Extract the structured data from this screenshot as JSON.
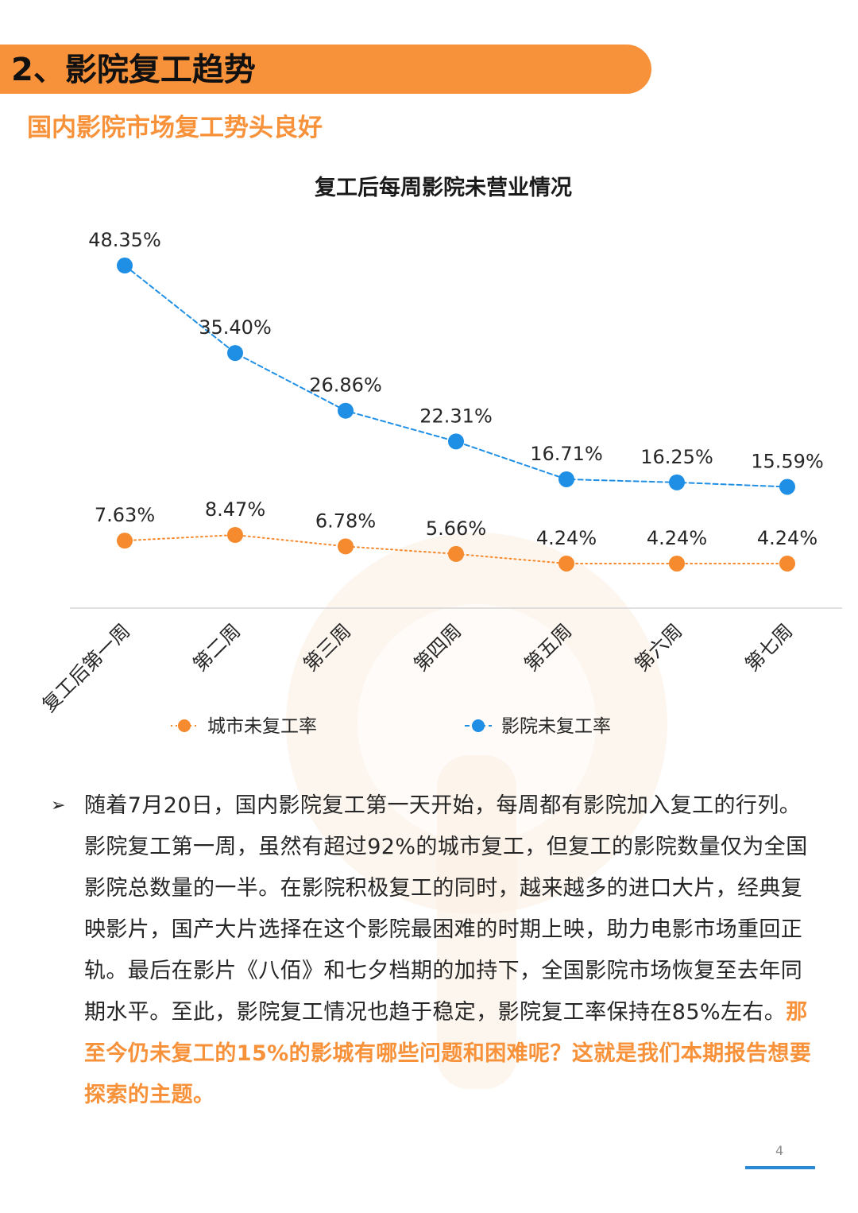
{
  "header": {
    "section_title": "2、影院复工趋势",
    "subtitle": "国内影院市场复工势头良好"
  },
  "colors": {
    "accent_orange": "#f7923a",
    "series_orange": "#f58a2e",
    "series_blue": "#1f8fe5",
    "page_line": "#2a8ad8"
  },
  "chart_data": {
    "type": "line",
    "title": "复工后每周影院未营业情况",
    "categories": [
      "复工后第一周",
      "第二周",
      "第三周",
      "第四周",
      "第五周",
      "第六周",
      "第七周"
    ],
    "series": [
      {
        "name": "城市未复工率",
        "color": "#f58a2e",
        "style": "dotted",
        "values": [
          7.63,
          8.47,
          6.78,
          5.66,
          4.24,
          4.24,
          4.24
        ],
        "labels": [
          "7.63%",
          "8.47%",
          "6.78%",
          "5.66%",
          "4.24%",
          "4.24%",
          "4.24%"
        ]
      },
      {
        "name": "影院未复工率",
        "color": "#1f8fe5",
        "style": "dashed",
        "values": [
          48.35,
          35.4,
          26.86,
          22.31,
          16.71,
          16.25,
          15.59
        ],
        "labels": [
          "48.35%",
          "35.40%",
          "26.86%",
          "22.31%",
          "16.71%",
          "16.25%",
          "15.59%"
        ]
      }
    ],
    "legend_position": "bottom",
    "ylim": [
      0,
      50
    ],
    "grid": false
  },
  "body": {
    "bullet_icon": "arrowhead-bullet-icon",
    "paragraph_normal": "随着7月20日，国内影院复工第一天开始，每周都有影院加入复工的行列。影院复工第一周，虽然有超过92%的城市复工，但复工的影院数量仅为全国影院总数量的一半。在影院积极复工的同时，越来越多的进口大片，经典复映影片，国产大片选择在这个影院最困难的时期上映，助力电影市场重回正轨。最后在影片《八佰》和七夕档期的加持下，全国影院市场恢复至去年同期水平。至此，影院复工情况也趋于稳定，影院复工率保持在85%左右。",
    "paragraph_highlight": "那至今仍未复工的15%的影城有哪些问题和困难呢？这就是我们本期报告想要探索的主题。"
  },
  "footer": {
    "page_number": "4"
  }
}
